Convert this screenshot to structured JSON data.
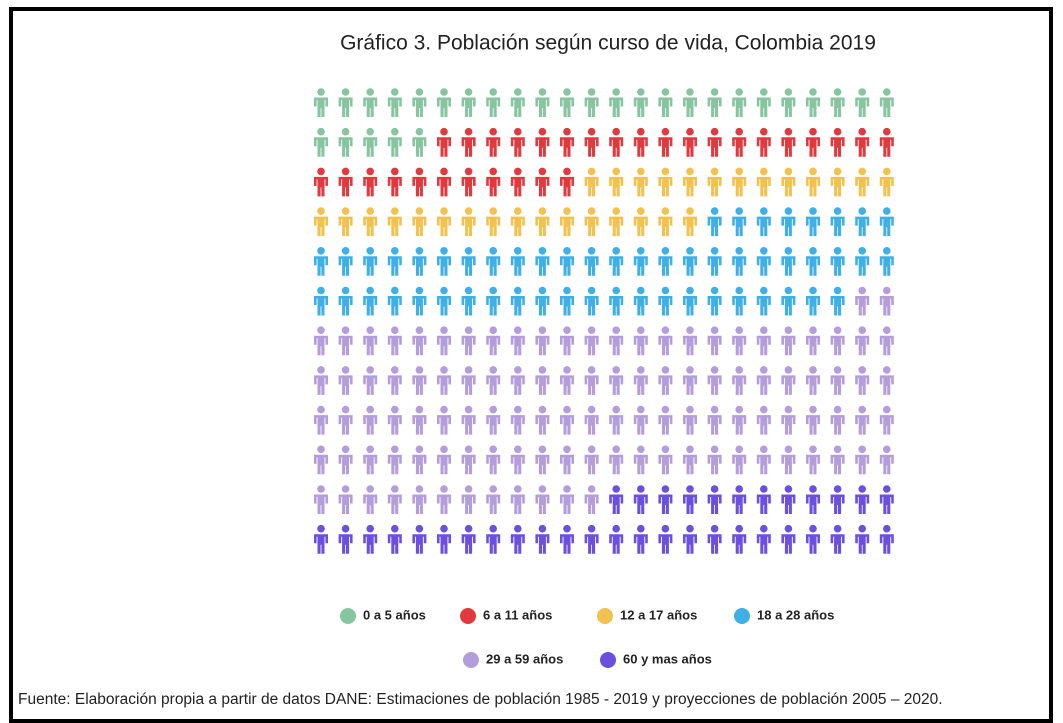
{
  "chart_data": {
    "type": "pictogram",
    "title": "Gráfico 3. Población según curso de vida, Colombia 2019",
    "columns": 24,
    "series": [
      {
        "name": "0 a 5 años",
        "color": "#86c5a0",
        "values": [
          29
        ]
      },
      {
        "name": "6 a 11 años",
        "color": "#e0393e",
        "values": [
          30
        ]
      },
      {
        "name": "12 a 17 años",
        "color": "#f2c14e",
        "values": [
          29
        ]
      },
      {
        "name": "18 a 28 años",
        "color": "#3fb0e6",
        "values": [
          54
        ]
      },
      {
        "name": "29 a 59 años",
        "color": "#b39ddb",
        "values": [
          110
        ]
      },
      {
        "name": "60 y mas años",
        "color": "#6a4fe0",
        "values": [
          36
        ]
      }
    ],
    "source": "Fuente: Elaboración propia a partir de datos DANE: Estimaciones de población 1985 - 2019 y proyecciones de población 2005 – 2020."
  }
}
